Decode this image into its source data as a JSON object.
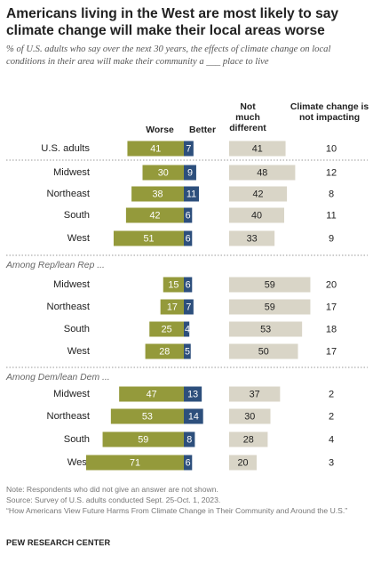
{
  "title": "Americans living in the West are most likely to say climate change will make their local areas worse",
  "subtitle": "% of U.S. adults who say over the next 30 years, the effects of climate change on local conditions in their area will make their community a ___ place to live",
  "columns": {
    "worse": "Worse",
    "better": "Better",
    "not_much_different": "Not much different",
    "not_impacting": "Climate change is not impacting"
  },
  "colors": {
    "worse": "#949a3b",
    "better": "#2d4f7c",
    "not_much_different": "#d9d5c7"
  },
  "chart_data": {
    "type": "bar",
    "series_names": [
      "Worse",
      "Better",
      "Not much different",
      "Climate change is not impacting"
    ],
    "groups": [
      {
        "label": "",
        "rows": [
          {
            "label": "U.S. adults",
            "worse": 41,
            "better": 7,
            "not_much_different": 41,
            "not_impacting": 10
          },
          {
            "label": "Midwest",
            "worse": 30,
            "better": 9,
            "not_much_different": 48,
            "not_impacting": 12
          },
          {
            "label": "Northeast",
            "worse": 38,
            "better": 11,
            "not_much_different": 42,
            "not_impacting": 8
          },
          {
            "label": "South",
            "worse": 42,
            "better": 6,
            "not_much_different": 40,
            "not_impacting": 11
          },
          {
            "label": "West",
            "worse": 51,
            "better": 6,
            "not_much_different": 33,
            "not_impacting": 9
          }
        ]
      },
      {
        "label": "Among Rep/lean Rep ...",
        "rows": [
          {
            "label": "Midwest",
            "worse": 15,
            "better": 6,
            "not_much_different": 59,
            "not_impacting": 20
          },
          {
            "label": "Northeast",
            "worse": 17,
            "better": 7,
            "not_much_different": 59,
            "not_impacting": 17
          },
          {
            "label": "South",
            "worse": 25,
            "better": 4,
            "not_much_different": 53,
            "not_impacting": 18
          },
          {
            "label": "West",
            "worse": 28,
            "better": 5,
            "not_much_different": 50,
            "not_impacting": 17
          }
        ]
      },
      {
        "label": "Among Dem/lean Dem ...",
        "rows": [
          {
            "label": "Midwest",
            "worse": 47,
            "better": 13,
            "not_much_different": 37,
            "not_impacting": 2
          },
          {
            "label": "Northeast",
            "worse": 53,
            "better": 14,
            "not_much_different": 30,
            "not_impacting": 2
          },
          {
            "label": "South",
            "worse": 59,
            "better": 8,
            "not_much_different": 28,
            "not_impacting": 4
          },
          {
            "label": "West",
            "worse": 71,
            "better": 6,
            "not_much_different": 20,
            "not_impacting": 3
          }
        ]
      }
    ]
  },
  "notes": {
    "note": "Note: Respondents who did not give an answer are not shown.",
    "source": "Source: Survey of U.S. adults conducted Sept. 25-Oct. 1, 2023.",
    "report": "“How Americans View Future Harms From Climate Change in Their Community and Around the U.S.”"
  },
  "brand": "PEW RESEARCH CENTER"
}
